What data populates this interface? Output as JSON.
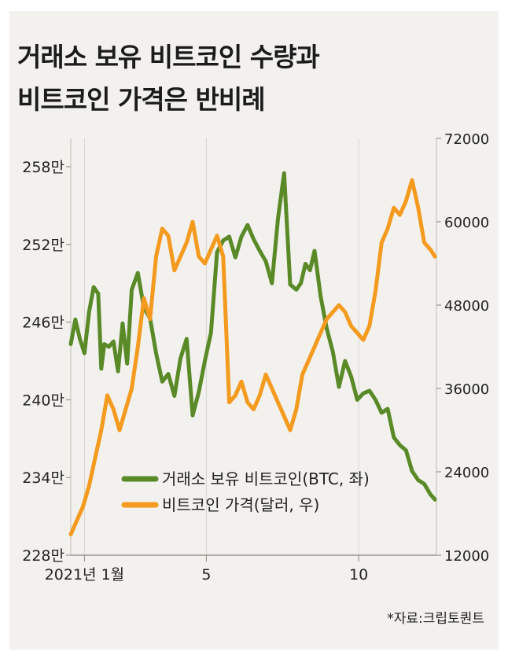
{
  "chart_data": {
    "type": "line",
    "title_lines": [
      "거래소 보유 비트코인 수량과",
      "비트코인 가격은 반비례"
    ],
    "source": "*자료:크립토퀀트",
    "x_ticks": [
      {
        "label": "2021년 1월",
        "month": 1
      },
      {
        "label": "5",
        "month": 5
      },
      {
        "label": "10",
        "month": 10
      }
    ],
    "y_left": {
      "ylim": [
        2280000,
        2580000
      ],
      "ticks": [
        {
          "value": 2280000,
          "label": "228만"
        },
        {
          "value": 2340000,
          "label": "234만"
        },
        {
          "value": 2400000,
          "label": "240만"
        },
        {
          "value": 2460000,
          "label": "246만"
        },
        {
          "value": 2520000,
          "label": "252만"
        },
        {
          "value": 2580000,
          "label": "258만"
        }
      ]
    },
    "y_right": {
      "ylim": [
        12000,
        72000
      ],
      "ticks": [
        {
          "value": 12000,
          "label": "12000"
        },
        {
          "value": 24000,
          "label": "24000"
        },
        {
          "value": 36000,
          "label": "36000"
        },
        {
          "value": 48000,
          "label": "48000"
        },
        {
          "value": 60000,
          "label": "60000"
        },
        {
          "value": 72000,
          "label": "72000"
        }
      ]
    },
    "x_range": [
      0,
      12
    ],
    "series": [
      {
        "name": "거래소 보유 비트코인(BTC, 좌)",
        "axis": "left",
        "color": "#5a8a28",
        "x": [
          0.0,
          0.15,
          0.3,
          0.45,
          0.6,
          0.75,
          0.9,
          1.0,
          1.1,
          1.25,
          1.4,
          1.55,
          1.7,
          1.85,
          2.0,
          2.2,
          2.4,
          2.6,
          2.8,
          3.0,
          3.2,
          3.4,
          3.6,
          3.8,
          4.0,
          4.2,
          4.4,
          4.6,
          4.8,
          5.0,
          5.2,
          5.4,
          5.6,
          5.8,
          6.0,
          6.2,
          6.4,
          6.6,
          6.8,
          7.0,
          7.2,
          7.4,
          7.55,
          7.7,
          7.85,
          8.0,
          8.2,
          8.4,
          8.6,
          8.8,
          9.0,
          9.2,
          9.4,
          9.6,
          9.8,
          10.0,
          10.2,
          10.4,
          10.6,
          10.8,
          11.0,
          11.2,
          11.4,
          11.6,
          11.8,
          11.95
        ],
        "y": [
          2443000,
          2462000,
          2447000,
          2436000,
          2468000,
          2487000,
          2482000,
          2424000,
          2443000,
          2441000,
          2445000,
          2422000,
          2459000,
          2428000,
          2485000,
          2498000,
          2471000,
          2463000,
          2436000,
          2414000,
          2420000,
          2403000,
          2432000,
          2447000,
          2388000,
          2406000,
          2430000,
          2452000,
          2514000,
          2523000,
          2526000,
          2510000,
          2526000,
          2535000,
          2524000,
          2515000,
          2507000,
          2490000,
          2540000,
          2575000,
          2489000,
          2485000,
          2490000,
          2505000,
          2500000,
          2515000,
          2480000,
          2455000,
          2437000,
          2410000,
          2430000,
          2418000,
          2400000,
          2405000,
          2407000,
          2400000,
          2390000,
          2393000,
          2371000,
          2365000,
          2361000,
          2345000,
          2338000,
          2335000,
          2327000,
          2323000
        ]
      },
      {
        "name": "비트코인 가격(달러, 우)",
        "axis": "right",
        "color": "#f39a1f",
        "x": [
          0.0,
          0.2,
          0.4,
          0.6,
          0.8,
          1.0,
          1.2,
          1.4,
          1.6,
          1.8,
          2.0,
          2.2,
          2.4,
          2.6,
          2.8,
          3.0,
          3.2,
          3.4,
          3.6,
          3.8,
          4.0,
          4.2,
          4.4,
          4.6,
          4.8,
          5.0,
          5.2,
          5.4,
          5.6,
          5.8,
          6.0,
          6.2,
          6.4,
          6.6,
          6.8,
          7.0,
          7.2,
          7.4,
          7.6,
          7.8,
          8.0,
          8.2,
          8.4,
          8.6,
          8.8,
          9.0,
          9.2,
          9.4,
          9.6,
          9.8,
          10.0,
          10.2,
          10.4,
          10.6,
          10.8,
          11.0,
          11.2,
          11.4,
          11.6,
          11.8,
          11.95
        ],
        "y": [
          15000,
          17000,
          19000,
          22000,
          26000,
          30000,
          35000,
          33000,
          30000,
          33000,
          36000,
          42000,
          49000,
          46000,
          55000,
          59000,
          58000,
          53000,
          55000,
          57000,
          60000,
          55000,
          54000,
          56000,
          58000,
          55000,
          34000,
          35000,
          37000,
          34000,
          33000,
          35000,
          38000,
          36000,
          34000,
          32000,
          30000,
          33000,
          38000,
          40000,
          42000,
          44000,
          46000,
          47000,
          48000,
          47000,
          45000,
          44000,
          43000,
          45000,
          50000,
          57000,
          59000,
          62000,
          61000,
          63000,
          66000,
          62000,
          57000,
          56000,
          55000
        ]
      }
    ]
  }
}
